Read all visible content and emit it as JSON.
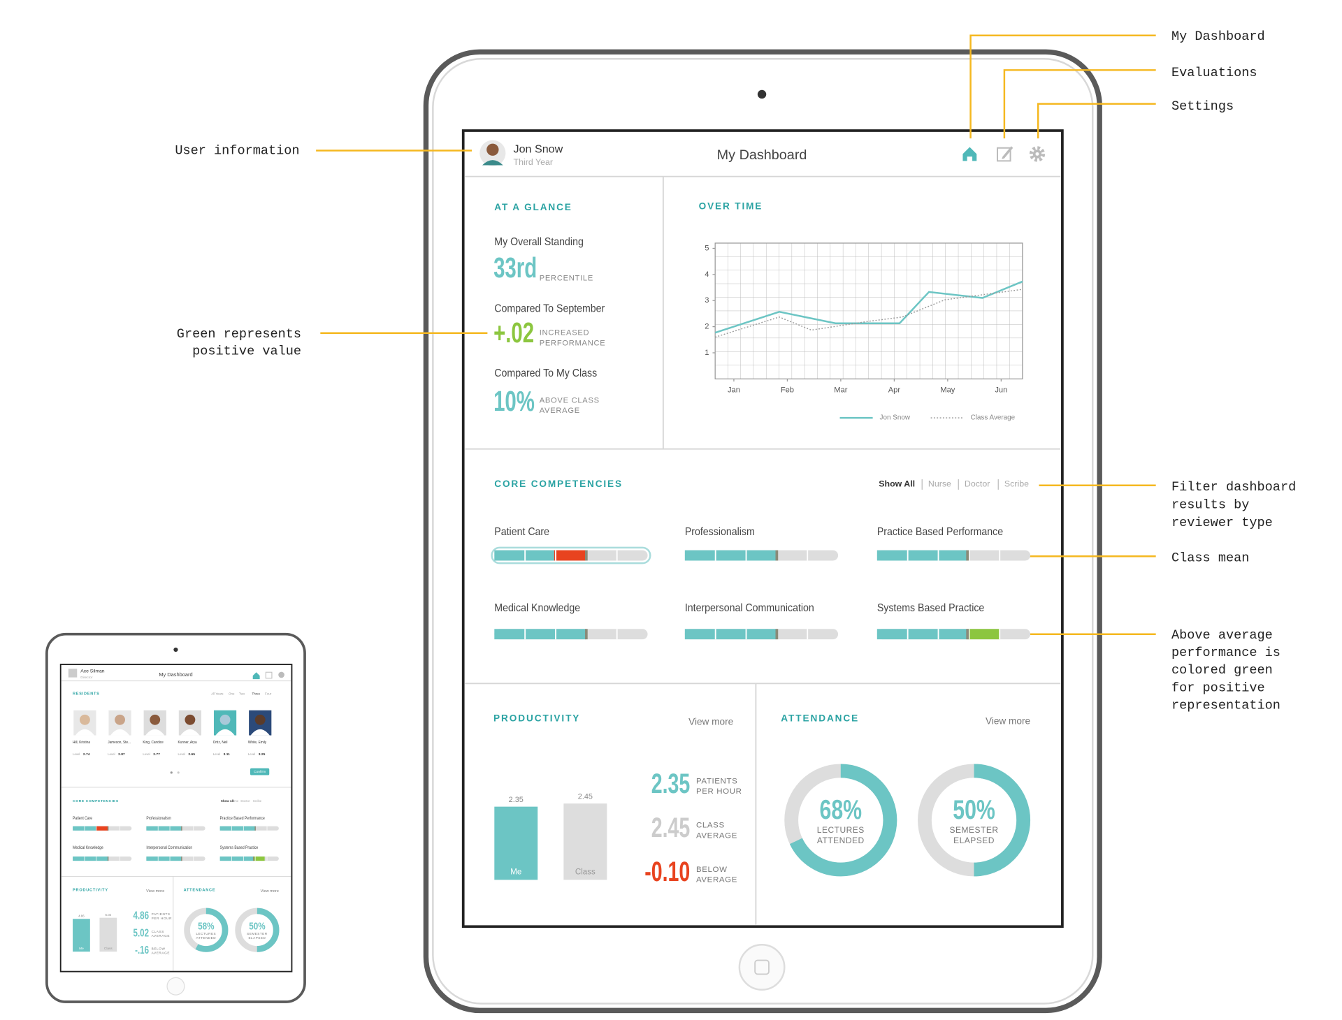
{
  "annotations": {
    "my_dashboard": "My Dashboard",
    "evaluations": "Evaluations",
    "settings": "Settings",
    "user_information": "User information",
    "green_positive": [
      "Green represents",
      "positive value"
    ],
    "filter": [
      "Filter dashboard",
      "results by",
      "reviewer type"
    ],
    "class_mean": "Class mean",
    "above_average": [
      "Above average",
      "performance is",
      "colored green",
      "for positive",
      "representation"
    ]
  },
  "header": {
    "name": "Jon Snow",
    "role": "Third Year",
    "title": "My Dashboard"
  },
  "at_a_glance": {
    "heading": "AT A GLANCE",
    "items": [
      {
        "label": "My Overall Standing",
        "value": "33rd",
        "color": "#6cc5c4",
        "note": [
          "PERCENTILE"
        ]
      },
      {
        "label": "Compared To September",
        "value": "+.02",
        "color": "#8cc63f",
        "note": [
          "INCREASED",
          "PERFORMANCE"
        ]
      },
      {
        "label": "Compared To My Class",
        "value": "10%",
        "color": "#6cc5c4",
        "note": [
          "ABOVE CLASS",
          "AVERAGE"
        ]
      }
    ]
  },
  "over_time": {
    "heading": "OVER TIME"
  },
  "chart_data": {
    "type": "line",
    "xlim": [
      0.65,
      6.4
    ],
    "xticks": [
      {
        "value": 1,
        "label": "Jan"
      },
      {
        "value": 2,
        "label": "Feb"
      },
      {
        "value": 3,
        "label": "Mar"
      },
      {
        "value": 4,
        "label": "Apr"
      },
      {
        "value": 5,
        "label": "May"
      },
      {
        "value": 6,
        "label": "Jun"
      }
    ],
    "ylim": [
      0,
      5.2
    ],
    "yticks": [
      1,
      2,
      3,
      4,
      5
    ],
    "grid": true,
    "series": [
      {
        "name": "Jon Snow",
        "color": "#6cc5c4",
        "line_style": "solid",
        "x": [
          0.65,
          1.85,
          2.9,
          4.1,
          4.65,
          5.65,
          6.4
        ],
        "values": [
          1.77,
          2.57,
          2.13,
          2.13,
          3.33,
          3.1,
          3.73
        ]
      },
      {
        "name": "Class Average",
        "color": "#999999",
        "line_style": "dotted",
        "x": [
          0.65,
          1.85,
          2.45,
          3.5,
          4.15,
          4.95,
          6.4
        ],
        "values": [
          1.6,
          2.37,
          1.87,
          2.2,
          2.37,
          3.03,
          3.43
        ]
      }
    ]
  },
  "core_competencies": {
    "heading": "CORE COMPETENCIES",
    "filters": [
      "Show All",
      "Nurse",
      "Doctor",
      "Scribe"
    ],
    "colors": {
      "fill": "#6cc5c4",
      "below": "#e8431f",
      "above": "#8cc63f",
      "track": "#dddddd",
      "mean": "#8a8a78"
    },
    "items": [
      {
        "name": "Patient Care",
        "value": 39,
        "mean": 60
      },
      {
        "name": "Professionalism",
        "value": 60,
        "mean": 60
      },
      {
        "name": "Practice Based Performance",
        "value": 59,
        "mean": 59
      },
      {
        "name": "Medical Knowledge",
        "value": 60,
        "mean": 60
      },
      {
        "name": "Interpersonal Communication",
        "value": 60,
        "mean": 60
      },
      {
        "name": "Systems Based Practice",
        "value": 80,
        "mean": 59
      }
    ]
  },
  "productivity": {
    "heading": "PRODUCTIVITY",
    "link": "View more",
    "bars": [
      {
        "label": "Me",
        "value": 2.35,
        "color": "#6cc5c4"
      },
      {
        "label": "Class",
        "value": 2.45,
        "color": "#dddddd"
      }
    ],
    "stats": [
      {
        "value": "2.35",
        "color": "#6cc5c4",
        "note": [
          "PATIENTS",
          "PER HOUR"
        ]
      },
      {
        "value": "2.45",
        "color": "#cccccc",
        "note": [
          "CLASS",
          "AVERAGE"
        ]
      },
      {
        "value": "-0.10",
        "color": "#e8431f",
        "note": [
          "BELOW",
          "AVERAGE"
        ]
      }
    ]
  },
  "attendance": {
    "heading": "ATTENDANCE",
    "link": "View more",
    "donuts": [
      {
        "value": 68,
        "label": "68%",
        "note": [
          "LECTURES",
          "ATTENDED"
        ]
      },
      {
        "value": 50,
        "label": "50%",
        "note": [
          "SEMESTER",
          "ELAPSED"
        ]
      }
    ]
  },
  "mini": {
    "header": {
      "name": "Ace Silman",
      "role": "Director",
      "title": "My Dashboard"
    },
    "residents": {
      "heading": "RESIDENTS",
      "filters": [
        "All Years",
        "One",
        "Two",
        "Three",
        "Four"
      ],
      "level_label": "Level",
      "people": [
        {
          "name": "Hill, Kristina",
          "level": "2.74"
        },
        {
          "name": "Jameson, Ste...",
          "level": "2.87"
        },
        {
          "name": "King, Candice",
          "level": "2.77"
        },
        {
          "name": "Kunner, Arya",
          "level": "2.65"
        },
        {
          "name": "Ortiz, Neil",
          "level": "3.11"
        },
        {
          "name": "White, Emily",
          "level": "3.25"
        }
      ],
      "button": "Confirm"
    },
    "core_competencies": {
      "heading": "CORE COMPETENCIES",
      "filters": [
        "Show All",
        "Nurse",
        "Doctor",
        "Scribe"
      ],
      "items": [
        {
          "name": "Patient Care",
          "value": 40,
          "mean": 60
        },
        {
          "name": "Professionalism",
          "value": 60,
          "mean": 60
        },
        {
          "name": "Practice Based Performance",
          "value": 60,
          "mean": 60
        },
        {
          "name": "Medical Knowledge",
          "value": 60,
          "mean": 60
        },
        {
          "name": "Interpersonal Communication",
          "value": 60,
          "mean": 60
        },
        {
          "name": "Systems Based Practice",
          "value": 76,
          "mean": 57
        }
      ]
    },
    "productivity": {
      "heading": "PRODUCTIVITY",
      "link": "View more",
      "bars": [
        {
          "label": "Me",
          "value": 4.86,
          "color": "#6cc5c4"
        },
        {
          "label": "Class",
          "value": 5.02,
          "color": "#dddddd"
        }
      ],
      "stats": [
        {
          "value": "4.86",
          "color": "#6cc5c4",
          "note": [
            "PATIENTS",
            "PER HOUR"
          ]
        },
        {
          "value": "5.02",
          "color": "#6cc5c4",
          "note": [
            "CLASS",
            "AVERAGE"
          ]
        },
        {
          "value": "-.16",
          "color": "#6cc5c4",
          "note": [
            "BELOW",
            "AVERAGE"
          ]
        }
      ]
    },
    "attendance": {
      "heading": "ATTENDANCE",
      "link": "View more",
      "donuts": [
        {
          "value": 58,
          "label": "58%",
          "note": [
            "LECTURES",
            "ATTENDED"
          ]
        },
        {
          "value": 50,
          "label": "50%",
          "note": [
            "SEMESTER",
            "ELAPSED"
          ]
        }
      ]
    }
  }
}
